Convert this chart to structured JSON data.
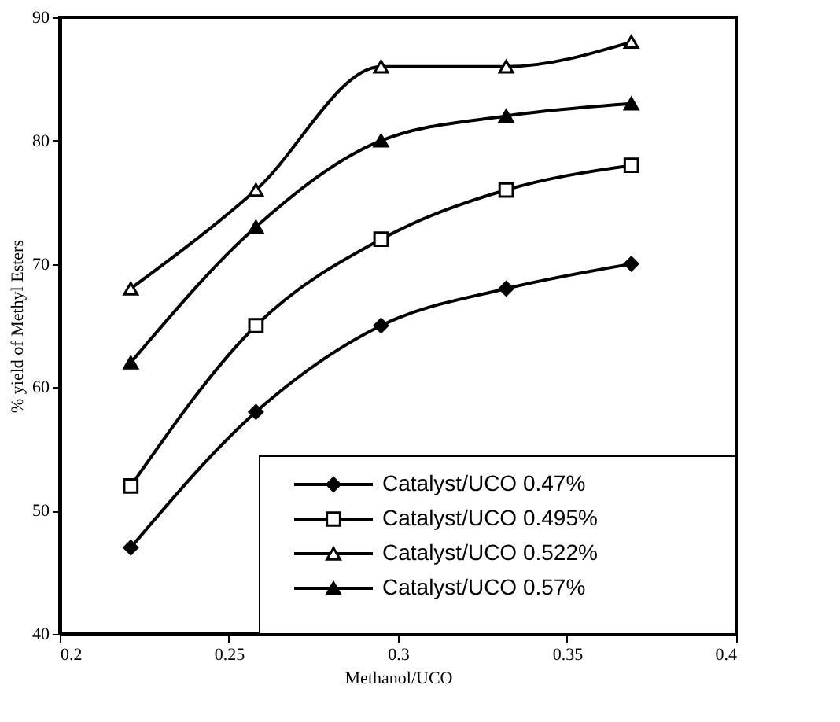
{
  "chart_data": {
    "type": "line",
    "xlabel": "Methanol/UCO",
    "ylabel": "% yield of Methyl Esters",
    "x": [
      0.221,
      0.258,
      0.295,
      0.332,
      0.369
    ],
    "series": [
      {
        "name": "Catalyst/UCO  0.47%",
        "color": "#000000",
        "marker": "diamond",
        "values": [
          47,
          58,
          65,
          68,
          70
        ]
      },
      {
        "name": "Catalyst/UCO 0.495%",
        "color": "#000000",
        "marker": "square",
        "values": [
          52,
          65,
          72,
          76,
          78
        ]
      },
      {
        "name": "Catalyst/UCO 0.522%",
        "color": "#000000",
        "marker": "triangle",
        "values": [
          68,
          76,
          86,
          86,
          88
        ]
      },
      {
        "name": "Catalyst/UCO 0.57%",
        "color": "#000000",
        "marker": "triangle",
        "values": [
          62,
          73,
          80,
          82,
          83
        ]
      }
    ],
    "xlim": [
      0.2,
      0.4
    ],
    "xticks": [
      0.2,
      0.25,
      0.3,
      0.35,
      0.4
    ],
    "ylim": [
      40,
      90
    ],
    "yticks": [
      40,
      50,
      60,
      70,
      80,
      90
    ],
    "grid": false,
    "legend": "bottom right",
    "line_style": "solid"
  }
}
